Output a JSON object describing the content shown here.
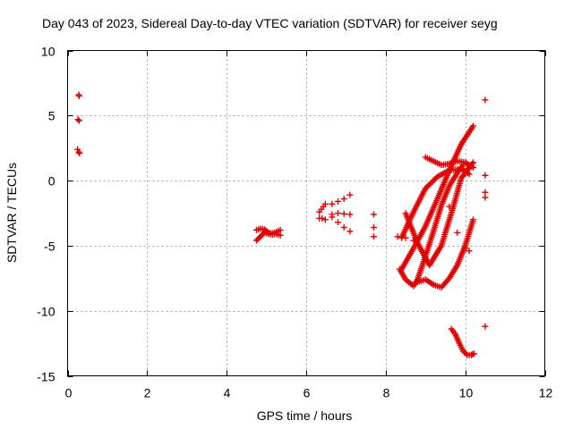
{
  "chart_data": {
    "type": "scatter",
    "title": "Day 043 of 2023, Sidereal Day-to-day VTEC variation (SDTVAR) for receiver seyg",
    "xlabel": "GPS time / hours",
    "ylabel": "SDTVAR / TECUs",
    "xlim": [
      0,
      12
    ],
    "ylim": [
      -15,
      10
    ],
    "xticks": [
      0,
      2,
      4,
      6,
      8,
      10,
      12
    ],
    "yticks": [
      -15,
      -10,
      -5,
      0,
      5,
      10
    ],
    "xtick_labels": [
      "0",
      "2",
      "4",
      "6",
      "8",
      "10",
      "12"
    ],
    "ytick_labels": [
      "-15",
      "-10",
      "-5",
      "0",
      "5",
      "10"
    ],
    "grid": true,
    "marker": "plus",
    "color": "#e00000",
    "segments": [
      {
        "name": "early-top",
        "points": [
          [
            0.28,
            6.6
          ],
          [
            0.29,
            6.5
          ]
        ]
      },
      {
        "name": "early-mid",
        "points": [
          [
            0.26,
            4.7
          ],
          [
            0.29,
            4.6
          ]
        ]
      },
      {
        "name": "early-low",
        "points": [
          [
            0.25,
            2.4
          ],
          [
            0.28,
            2.2
          ],
          [
            0.3,
            2.1
          ]
        ]
      },
      {
        "name": "arc-5h-a",
        "points": [
          [
            4.75,
            -4.6
          ],
          [
            4.85,
            -4.3
          ],
          [
            4.95,
            -4.0
          ],
          [
            5.05,
            -4.1
          ],
          [
            5.15,
            -4.15
          ],
          [
            5.25,
            -4.1
          ],
          [
            5.35,
            -4.2
          ]
        ]
      },
      {
        "name": "arc-5h-b",
        "points": [
          [
            4.75,
            -3.8
          ],
          [
            4.85,
            -3.7
          ],
          [
            4.95,
            -3.75
          ],
          [
            5.05,
            -4.0
          ],
          [
            5.15,
            -4.05
          ],
          [
            5.25,
            -3.95
          ],
          [
            5.35,
            -3.8
          ]
        ]
      },
      {
        "name": "arc-6-4h-a",
        "points": [
          [
            6.33,
            -2.4
          ],
          [
            6.38,
            -2.2
          ],
          [
            6.43,
            -2.0
          ],
          [
            6.48,
            -1.8
          ]
        ]
      },
      {
        "name": "arc-6-4h-b",
        "points": [
          [
            6.33,
            -2.9
          ],
          [
            6.4,
            -2.9
          ],
          [
            6.48,
            -3.0
          ]
        ]
      },
      {
        "name": "arc-6-8h-a",
        "points": [
          [
            6.65,
            -1.8
          ],
          [
            6.8,
            -1.6
          ],
          [
            6.95,
            -1.4
          ],
          [
            7.1,
            -1.1
          ]
        ]
      },
      {
        "name": "arc-6-8h-b",
        "points": [
          [
            6.65,
            -2.6
          ],
          [
            6.8,
            -2.5
          ],
          [
            6.95,
            -2.55
          ],
          [
            7.1,
            -2.6
          ]
        ]
      },
      {
        "name": "arc-6-8h-c",
        "points": [
          [
            6.65,
            -2.8
          ],
          [
            6.8,
            -3.2
          ],
          [
            6.95,
            -3.6
          ],
          [
            7.1,
            -3.9
          ]
        ]
      },
      {
        "name": "sparse-7-7h",
        "points": [
          [
            7.7,
            -2.6
          ],
          [
            7.7,
            -3.6
          ],
          [
            7.7,
            -4.3
          ]
        ]
      },
      {
        "name": "arc-steep-up",
        "points": [
          [
            8.4,
            -4.4
          ],
          [
            8.7,
            -2.4
          ],
          [
            9.0,
            -0.6
          ],
          [
            9.3,
            0.3
          ],
          [
            9.6,
            0.8
          ],
          [
            9.9,
            0.9
          ],
          [
            10.1,
            0.5
          ]
        ]
      },
      {
        "name": "arc-long-up",
        "points": [
          [
            8.4,
            -6.8
          ],
          [
            8.7,
            -5.2
          ],
          [
            9.0,
            -3.5
          ],
          [
            9.3,
            -1.4
          ],
          [
            9.6,
            0.8
          ],
          [
            9.9,
            2.8
          ],
          [
            10.2,
            4.2
          ]
        ]
      },
      {
        "name": "arc-low-v",
        "points": [
          [
            8.35,
            -6.8
          ],
          [
            8.5,
            -7.6
          ],
          [
            8.7,
            -8.1
          ],
          [
            8.8,
            -7.6
          ],
          [
            9.0,
            -5.8
          ],
          [
            9.2,
            -3.9
          ],
          [
            9.4,
            -1.9
          ],
          [
            9.6,
            -0.4
          ],
          [
            9.8,
            0.6
          ],
          [
            9.95,
            1.2
          ]
        ]
      },
      {
        "name": "arc-v-2",
        "points": [
          [
            8.8,
            -7.8
          ],
          [
            9.0,
            -7.6
          ],
          [
            9.2,
            -8.0
          ],
          [
            9.4,
            -8.2
          ],
          [
            9.6,
            -7.5
          ],
          [
            9.8,
            -6.5
          ],
          [
            10.0,
            -5.0
          ],
          [
            10.2,
            -3.0
          ]
        ]
      },
      {
        "name": "arc-down-1",
        "points": [
          [
            8.5,
            -2.5
          ],
          [
            8.8,
            -4.8
          ],
          [
            9.1,
            -6.5
          ],
          [
            9.4,
            -5.0
          ],
          [
            9.7,
            -2.0
          ],
          [
            9.9,
            0.2
          ],
          [
            10.2,
            1.4
          ]
        ]
      },
      {
        "name": "arc-top",
        "points": [
          [
            9.0,
            1.8
          ],
          [
            9.2,
            1.5
          ],
          [
            9.4,
            1.2
          ],
          [
            9.6,
            1.3
          ],
          [
            9.8,
            1.5
          ],
          [
            10.0,
            1.4
          ],
          [
            10.2,
            1.0
          ]
        ]
      },
      {
        "name": "arc-mid-diag",
        "points": [
          [
            9.6,
            -2.0
          ],
          [
            9.8,
            -4.0
          ],
          [
            10.0,
            -5.2
          ],
          [
            10.1,
            -5.4
          ]
        ]
      },
      {
        "name": "arc-4-4h",
        "points": [
          [
            8.3,
            -4.3
          ],
          [
            8.5,
            -4.4
          ],
          [
            8.7,
            -4.6
          ]
        ]
      },
      {
        "name": "arc-bottom",
        "points": [
          [
            9.65,
            -11.4
          ],
          [
            9.75,
            -11.8
          ],
          [
            9.85,
            -12.5
          ],
          [
            9.95,
            -13.1
          ],
          [
            10.05,
            -13.4
          ],
          [
            10.15,
            -13.4
          ],
          [
            10.22,
            -13.3
          ]
        ]
      },
      {
        "name": "right-sparse",
        "points": [
          [
            10.5,
            6.2
          ],
          [
            10.5,
            0.4
          ],
          [
            10.5,
            -0.9
          ],
          [
            10.5,
            -1.3
          ],
          [
            10.5,
            -11.2
          ]
        ]
      }
    ]
  }
}
